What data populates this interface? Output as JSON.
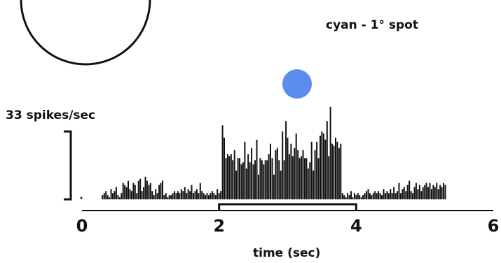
{
  "stimulus": {
    "label": "cyan - 1° spot",
    "spot_color": "#5b8def"
  },
  "chart_data": {
    "type": "bar",
    "title": "",
    "xlabel": "time (sec)",
    "ylabel": "",
    "scale_bar_label": "33 spikes/sec",
    "scale_bar_value": 33,
    "xlim": [
      0,
      6
    ],
    "x_ticks": [
      {
        "value": 0,
        "label": "0"
      },
      {
        "value": 2,
        "label": "2"
      },
      {
        "value": 4,
        "label": "4"
      },
      {
        "value": 6,
        "label": "6"
      }
    ],
    "stimulus_on": [
      2,
      4
    ],
    "bin_width": 0.025,
    "bin_start": 0.3,
    "values": [
      2,
      3,
      4,
      2,
      1,
      5,
      3,
      4,
      6,
      2,
      1,
      3,
      8,
      7,
      6,
      9,
      5,
      4,
      8,
      7,
      3,
      9,
      10,
      4,
      6,
      11,
      9,
      7,
      8,
      4,
      2,
      5,
      3,
      7,
      8,
      9,
      2,
      3,
      1,
      2,
      2,
      3,
      4,
      3,
      4,
      3,
      5,
      4,
      6,
      3,
      5,
      4,
      7,
      3,
      4,
      5,
      3,
      8,
      4,
      3,
      2,
      3,
      2,
      3,
      4,
      3,
      2,
      5,
      3,
      4,
      36,
      30,
      20,
      22,
      21,
      22,
      19,
      24,
      14,
      20,
      20,
      17,
      18,
      28,
      15,
      22,
      18,
      25,
      17,
      19,
      29,
      12,
      20,
      19,
      17,
      19,
      19,
      22,
      27,
      20,
      12,
      24,
      25,
      19,
      14,
      33,
      19,
      38,
      30,
      22,
      27,
      21,
      25,
      32,
      24,
      20,
      21,
      24,
      20,
      20,
      15,
      18,
      28,
      14,
      24,
      28,
      20,
      31,
      33,
      32,
      29,
      38,
      21,
      45,
      27,
      26,
      30,
      28,
      25,
      27,
      3,
      2,
      1,
      3,
      2,
      4,
      1,
      3,
      2,
      3,
      2,
      1,
      2,
      3,
      4,
      5,
      3,
      2,
      3,
      4,
      3,
      4,
      3,
      2,
      5,
      3,
      4,
      3,
      5,
      3,
      6,
      3,
      4,
      8,
      3,
      5,
      6,
      4,
      7,
      9,
      4,
      3,
      6,
      8,
      5,
      7,
      4,
      6,
      7,
      8,
      6,
      8,
      5,
      7,
      6,
      8,
      5,
      7,
      6,
      8,
      7
    ],
    "colors": {
      "bars": "#111111",
      "spot": "#5b8def"
    }
  }
}
